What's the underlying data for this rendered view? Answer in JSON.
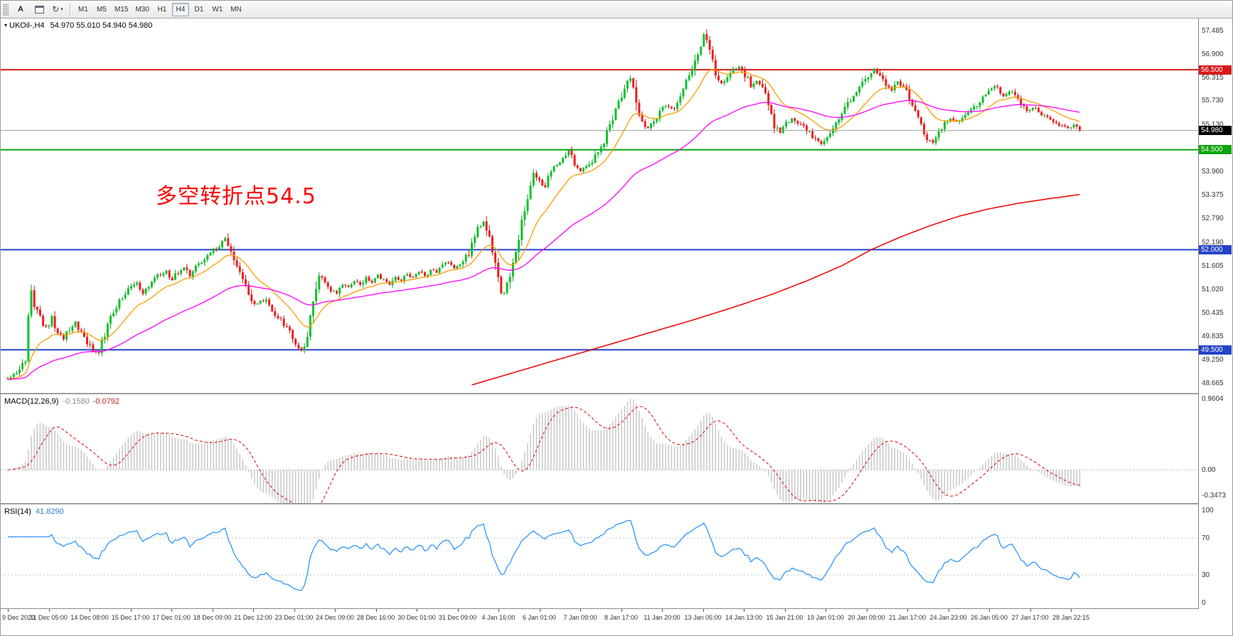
{
  "toolbar": {
    "annotate_label": "A",
    "timeframes": [
      {
        "label": "M1",
        "active": false
      },
      {
        "label": "M5",
        "active": false
      },
      {
        "label": "M15",
        "active": false
      },
      {
        "label": "M30",
        "active": false
      },
      {
        "label": "H1",
        "active": false
      },
      {
        "label": "H4",
        "active": true
      },
      {
        "label": "D1",
        "active": false
      },
      {
        "label": "W1",
        "active": false
      },
      {
        "label": "MN",
        "active": false
      }
    ]
  },
  "chart_data": {
    "type": "candlestick",
    "symbol_title": "UKOil-,H4",
    "ohlc_text": "54.970 55.010 54.940 54.980",
    "annotation": {
      "text": "多空转折点54.5",
      "color": "#ff0000"
    },
    "bars_total": 366,
    "price_axis": {
      "max": 57.78,
      "min": 48.42,
      "labels": [
        "57.485",
        "56.900",
        "56.315",
        "55.730",
        "55.130",
        "53.960",
        "53.375",
        "52.790",
        "52.190",
        "51.605",
        "51.020",
        "50.435",
        "49.835",
        "49.250",
        "48.665"
      ],
      "badges": [
        {
          "label": "56.500",
          "value": 56.5,
          "color": "#d61a1a"
        },
        {
          "label": "54.980",
          "value": 54.98,
          "color": "#000000"
        },
        {
          "label": "54.500",
          "value": 54.5,
          "color": "#0da50d"
        },
        {
          "label": "52.000",
          "value": 52.0,
          "color": "#2543c9"
        },
        {
          "label": "49.500",
          "value": 49.5,
          "color": "#2543c9"
        }
      ]
    },
    "hlines": [
      {
        "value": 56.5,
        "color": "#d61a1a",
        "width": 2
      },
      {
        "value": 54.5,
        "color": "#0da50d",
        "width": 2
      },
      {
        "value": 52.0,
        "color": "#2543c9",
        "width": 2
      },
      {
        "value": 49.5,
        "color": "#2543c9",
        "width": 2
      }
    ],
    "bid_line": {
      "value": 54.98,
      "color": "#9b9b9b",
      "width": 1
    },
    "candle_colors": {
      "up": "#0fc22b",
      "down": "#f01d1d",
      "up_wick": "#0a9e22",
      "down_wick": "#c91414"
    },
    "price_waypoints": [
      [
        0,
        48.78
      ],
      [
        2,
        48.9
      ],
      [
        4,
        49.05
      ],
      [
        6,
        49.35
      ],
      [
        7,
        50.2
      ],
      [
        8,
        50.95
      ],
      [
        9,
        50.55
      ],
      [
        11,
        50.3
      ],
      [
        13,
        50.05
      ],
      [
        15,
        50.35
      ],
      [
        17,
        49.95
      ],
      [
        19,
        49.75
      ],
      [
        21,
        50.05
      ],
      [
        23,
        50.2
      ],
      [
        25,
        49.95
      ],
      [
        27,
        49.7
      ],
      [
        29,
        49.5
      ],
      [
        31,
        49.45
      ],
      [
        33,
        49.9
      ],
      [
        35,
        50.25
      ],
      [
        38,
        50.7
      ],
      [
        41,
        51.0
      ],
      [
        44,
        51.2
      ],
      [
        46,
        50.9
      ],
      [
        48,
        51.05
      ],
      [
        50,
        51.25
      ],
      [
        52,
        51.4
      ],
      [
        54,
        51.5
      ],
      [
        56,
        51.25
      ],
      [
        58,
        51.45
      ],
      [
        60,
        51.55
      ],
      [
        62,
        51.35
      ],
      [
        64,
        51.6
      ],
      [
        66,
        51.7
      ],
      [
        68,
        51.85
      ],
      [
        70,
        52.0
      ],
      [
        72,
        52.1
      ],
      [
        74,
        52.25
      ],
      [
        76,
        51.95
      ],
      [
        78,
        51.6
      ],
      [
        80,
        51.25
      ],
      [
        82,
        50.95
      ],
      [
        84,
        50.6
      ],
      [
        86,
        50.7
      ],
      [
        88,
        50.8
      ],
      [
        90,
        50.5
      ],
      [
        92,
        50.3
      ],
      [
        94,
        50.15
      ],
      [
        96,
        49.9
      ],
      [
        98,
        49.6
      ],
      [
        100,
        49.5
      ],
      [
        102,
        49.8
      ],
      [
        104,
        50.6
      ],
      [
        106,
        51.35
      ],
      [
        108,
        51.2
      ],
      [
        110,
        51.0
      ],
      [
        112,
        50.9
      ],
      [
        114,
        51.15
      ],
      [
        116,
        51.05
      ],
      [
        118,
        51.2
      ],
      [
        120,
        51.1
      ],
      [
        122,
        51.3
      ],
      [
        124,
        51.2
      ],
      [
        126,
        51.35
      ],
      [
        128,
        51.25
      ],
      [
        130,
        51.15
      ],
      [
        132,
        51.3
      ],
      [
        134,
        51.2
      ],
      [
        136,
        51.4
      ],
      [
        138,
        51.3
      ],
      [
        140,
        51.45
      ],
      [
        142,
        51.35
      ],
      [
        144,
        51.5
      ],
      [
        146,
        51.4
      ],
      [
        148,
        51.6
      ],
      [
        150,
        51.7
      ],
      [
        152,
        51.55
      ],
      [
        154,
        51.65
      ],
      [
        156,
        51.8
      ],
      [
        158,
        52.1
      ],
      [
        160,
        52.5
      ],
      [
        162,
        52.72
      ],
      [
        164,
        52.3
      ],
      [
        166,
        51.7
      ],
      [
        168,
        51.05
      ],
      [
        169,
        50.88
      ],
      [
        171,
        51.4
      ],
      [
        173,
        52.0
      ],
      [
        175,
        52.7
      ],
      [
        177,
        53.35
      ],
      [
        179,
        53.9
      ],
      [
        181,
        53.7
      ],
      [
        183,
        53.6
      ],
      [
        185,
        53.95
      ],
      [
        187,
        54.15
      ],
      [
        189,
        54.3
      ],
      [
        191,
        54.45
      ],
      [
        193,
        54.15
      ],
      [
        195,
        53.95
      ],
      [
        197,
        54.05
      ],
      [
        199,
        54.2
      ],
      [
        201,
        54.5
      ],
      [
        203,
        54.75
      ],
      [
        205,
        55.15
      ],
      [
        207,
        55.5
      ],
      [
        209,
        55.9
      ],
      [
        211,
        56.2
      ],
      [
        212,
        56.32
      ],
      [
        214,
        55.8
      ],
      [
        216,
        55.2
      ],
      [
        218,
        55.05
      ],
      [
        220,
        55.2
      ],
      [
        222,
        55.45
      ],
      [
        224,
        55.6
      ],
      [
        226,
        55.5
      ],
      [
        228,
        55.7
      ],
      [
        230,
        56.0
      ],
      [
        232,
        56.3
      ],
      [
        234,
        56.65
      ],
      [
        236,
        57.1
      ],
      [
        237,
        57.35
      ],
      [
        239,
        56.95
      ],
      [
        241,
        56.45
      ],
      [
        243,
        56.15
      ],
      [
        245,
        56.3
      ],
      [
        247,
        56.5
      ],
      [
        249,
        56.6
      ],
      [
        251,
        56.4
      ],
      [
        253,
        56.05
      ],
      [
        255,
        56.2
      ],
      [
        257,
        56.0
      ],
      [
        259,
        55.6
      ],
      [
        261,
        55.1
      ],
      [
        263,
        54.95
      ],
      [
        265,
        55.15
      ],
      [
        267,
        55.3
      ],
      [
        269,
        55.15
      ],
      [
        271,
        55.05
      ],
      [
        273,
        54.9
      ],
      [
        275,
        54.75
      ],
      [
        277,
        54.65
      ],
      [
        279,
        54.8
      ],
      [
        281,
        55.0
      ],
      [
        283,
        55.25
      ],
      [
        285,
        55.5
      ],
      [
        287,
        55.75
      ],
      [
        289,
        55.95
      ],
      [
        291,
        56.15
      ],
      [
        293,
        56.35
      ],
      [
        295,
        56.5
      ],
      [
        297,
        56.35
      ],
      [
        299,
        56.1
      ],
      [
        301,
        56.0
      ],
      [
        303,
        56.2
      ],
      [
        305,
        56.05
      ],
      [
        307,
        55.8
      ],
      [
        309,
        55.45
      ],
      [
        311,
        55.1
      ],
      [
        313,
        54.8
      ],
      [
        315,
        54.65
      ],
      [
        317,
        54.95
      ],
      [
        319,
        55.15
      ],
      [
        321,
        55.3
      ],
      [
        323,
        55.2
      ],
      [
        325,
        55.3
      ],
      [
        327,
        55.45
      ],
      [
        329,
        55.55
      ],
      [
        331,
        55.7
      ],
      [
        333,
        55.85
      ],
      [
        335,
        56.0
      ],
      [
        337,
        56.1
      ],
      [
        339,
        55.85
      ],
      [
        341,
        55.95
      ],
      [
        343,
        55.9
      ],
      [
        345,
        55.65
      ],
      [
        347,
        55.5
      ],
      [
        349,
        55.55
      ],
      [
        351,
        55.45
      ],
      [
        353,
        55.35
      ],
      [
        355,
        55.25
      ],
      [
        357,
        55.15
      ],
      [
        359,
        55.1
      ],
      [
        361,
        55.05
      ],
      [
        363,
        55.1
      ],
      [
        365,
        54.98
      ]
    ],
    "moving_averages": {
      "fast": {
        "period": 16,
        "color": "#ff9d00"
      },
      "mid": {
        "period": 60,
        "color": "#ff00ff"
      },
      "slow": {
        "color": "#f00000",
        "waypoints": [
          [
            158,
            48.62
          ],
          [
            170,
            48.88
          ],
          [
            182,
            49.14
          ],
          [
            195,
            49.42
          ],
          [
            208,
            49.7
          ],
          [
            221,
            49.98
          ],
          [
            234,
            50.26
          ],
          [
            247,
            50.56
          ],
          [
            260,
            50.88
          ],
          [
            272,
            51.22
          ],
          [
            284,
            51.6
          ],
          [
            294,
            52.0
          ],
          [
            304,
            52.32
          ],
          [
            314,
            52.6
          ],
          [
            324,
            52.84
          ],
          [
            334,
            53.02
          ],
          [
            344,
            53.16
          ],
          [
            354,
            53.27
          ],
          [
            365,
            53.38
          ]
        ]
      }
    },
    "macd": {
      "title": "MACD(12,26,9)",
      "main_value": "-0.1580",
      "signal_value": "-0.0792",
      "axis_labels": [
        "0.9604",
        "0.00",
        "-0.3473"
      ],
      "range": [
        -0.45,
        1.02
      ],
      "histogram_color": "#c4c4c4",
      "signal_color": "#dd0000"
    },
    "rsi": {
      "title": "RSI(14)",
      "value": "41.8290",
      "axis_labels": [
        "100",
        "70",
        "30",
        "0"
      ],
      "levels": [
        70,
        30
      ],
      "range": [
        -6,
        106
      ],
      "line_color": "#1E90FF"
    },
    "time_axis": [
      "9 Dec 2020",
      "11 Dec 05:00",
      "14 Dec 08:00",
      "15 Dec 17:00",
      "17 Dec 01:00",
      "18 Dec 09:00",
      "21 Dec 12:00",
      "23 Dec 01:00",
      "24 Dec 09:00",
      "28 Dec 16:00",
      "30 Dec 01:00",
      "31 Dec 09:00",
      "4 Jan 16:00",
      "6 Jan 01:00",
      "7 Jan 09:00",
      "8 Jan 17:00",
      "11 Jan 20:00",
      "13 Jan 05:00",
      "14 Jan 13:00",
      "15 Jan 21:00",
      "19 Jan 01:00",
      "20 Jan 09:00",
      "21 Jan 17:00",
      "24 Jan 23:00",
      "26 Jan 05:00",
      "27 Jan 17:00",
      "28 Jan 22:15"
    ]
  }
}
